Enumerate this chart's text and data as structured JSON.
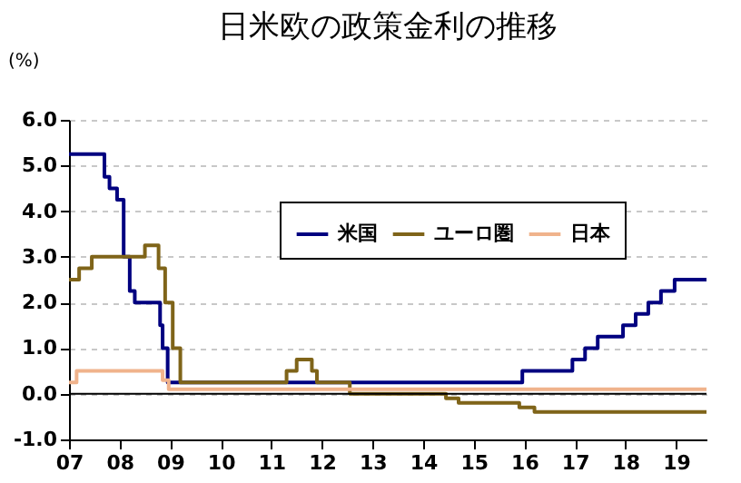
{
  "chart_data": {
    "type": "step",
    "title": "日米欧の政策金利の推移",
    "ylabel": "(%)",
    "xlim": [
      2007,
      2019.6
    ],
    "xticks": [
      {
        "value": 2007,
        "label": "07"
      },
      {
        "value": 2008,
        "label": "08"
      },
      {
        "value": 2009,
        "label": "09"
      },
      {
        "value": 2010,
        "label": "10"
      },
      {
        "value": 2011,
        "label": "11"
      },
      {
        "value": 2012,
        "label": "12"
      },
      {
        "value": 2013,
        "label": "13"
      },
      {
        "value": 2014,
        "label": "14"
      },
      {
        "value": 2015,
        "label": "15"
      },
      {
        "value": 2016,
        "label": "16"
      },
      {
        "value": 2017,
        "label": "17"
      },
      {
        "value": 2018,
        "label": "18"
      },
      {
        "value": 2019,
        "label": "19"
      }
    ],
    "ylim": [
      -1,
      6
    ],
    "yticks": [
      {
        "value": -1,
        "label": "-1.0"
      },
      {
        "value": 0,
        "label": "0.0"
      },
      {
        "value": 1,
        "label": "1.0"
      },
      {
        "value": 2,
        "label": "2.0"
      },
      {
        "value": 3,
        "label": "3.0"
      },
      {
        "value": 4,
        "label": "4.0"
      },
      {
        "value": 5,
        "label": "5.0"
      },
      {
        "value": 6,
        "label": "6.0"
      }
    ],
    "grid": "y",
    "legend": "top right",
    "ref_lines": [
      {
        "axis": "y",
        "value": 0,
        "color": "#000000"
      }
    ],
    "series": [
      {
        "name": "米国",
        "color": "#000080",
        "x": [
          2007,
          2007.7,
          2007.8,
          2007.95,
          2008.08,
          2008.2,
          2008.3,
          2008.8,
          2008.85,
          2008.95,
          2015.96,
          2016.95,
          2017.2,
          2017.45,
          2017.95,
          2018.2,
          2018.45,
          2018.7,
          2018.97,
          2019.6
        ],
        "values": [
          5.25,
          4.75,
          4.5,
          4.25,
          3.0,
          2.25,
          2.0,
          1.5,
          1.0,
          0.25,
          0.5,
          0.75,
          1.0,
          1.25,
          1.5,
          1.75,
          2.0,
          2.25,
          2.5,
          2.5
        ]
      },
      {
        "name": "ユーロ圏",
        "color": "#7f6419",
        "x": [
          2007,
          2007.2,
          2007.45,
          2008.5,
          2008.77,
          2008.9,
          2009.05,
          2009.2,
          2011.3,
          2011.5,
          2011.8,
          2011.9,
          2012.55,
          2014.45,
          2014.7,
          2015.9,
          2016.2,
          2019.6
        ],
        "values": [
          2.5,
          2.75,
          3.0,
          3.25,
          2.75,
          2.0,
          1.0,
          0.25,
          0.5,
          0.75,
          0.5,
          0.25,
          0.0,
          -0.1,
          -0.2,
          -0.3,
          -0.4,
          -0.4
        ]
      },
      {
        "name": "日本",
        "color": "#f0b38c",
        "x": [
          2007,
          2007.15,
          2008.85,
          2008.97,
          2019.6
        ],
        "values": [
          0.25,
          0.5,
          0.3,
          0.1,
          0.1
        ]
      }
    ]
  }
}
